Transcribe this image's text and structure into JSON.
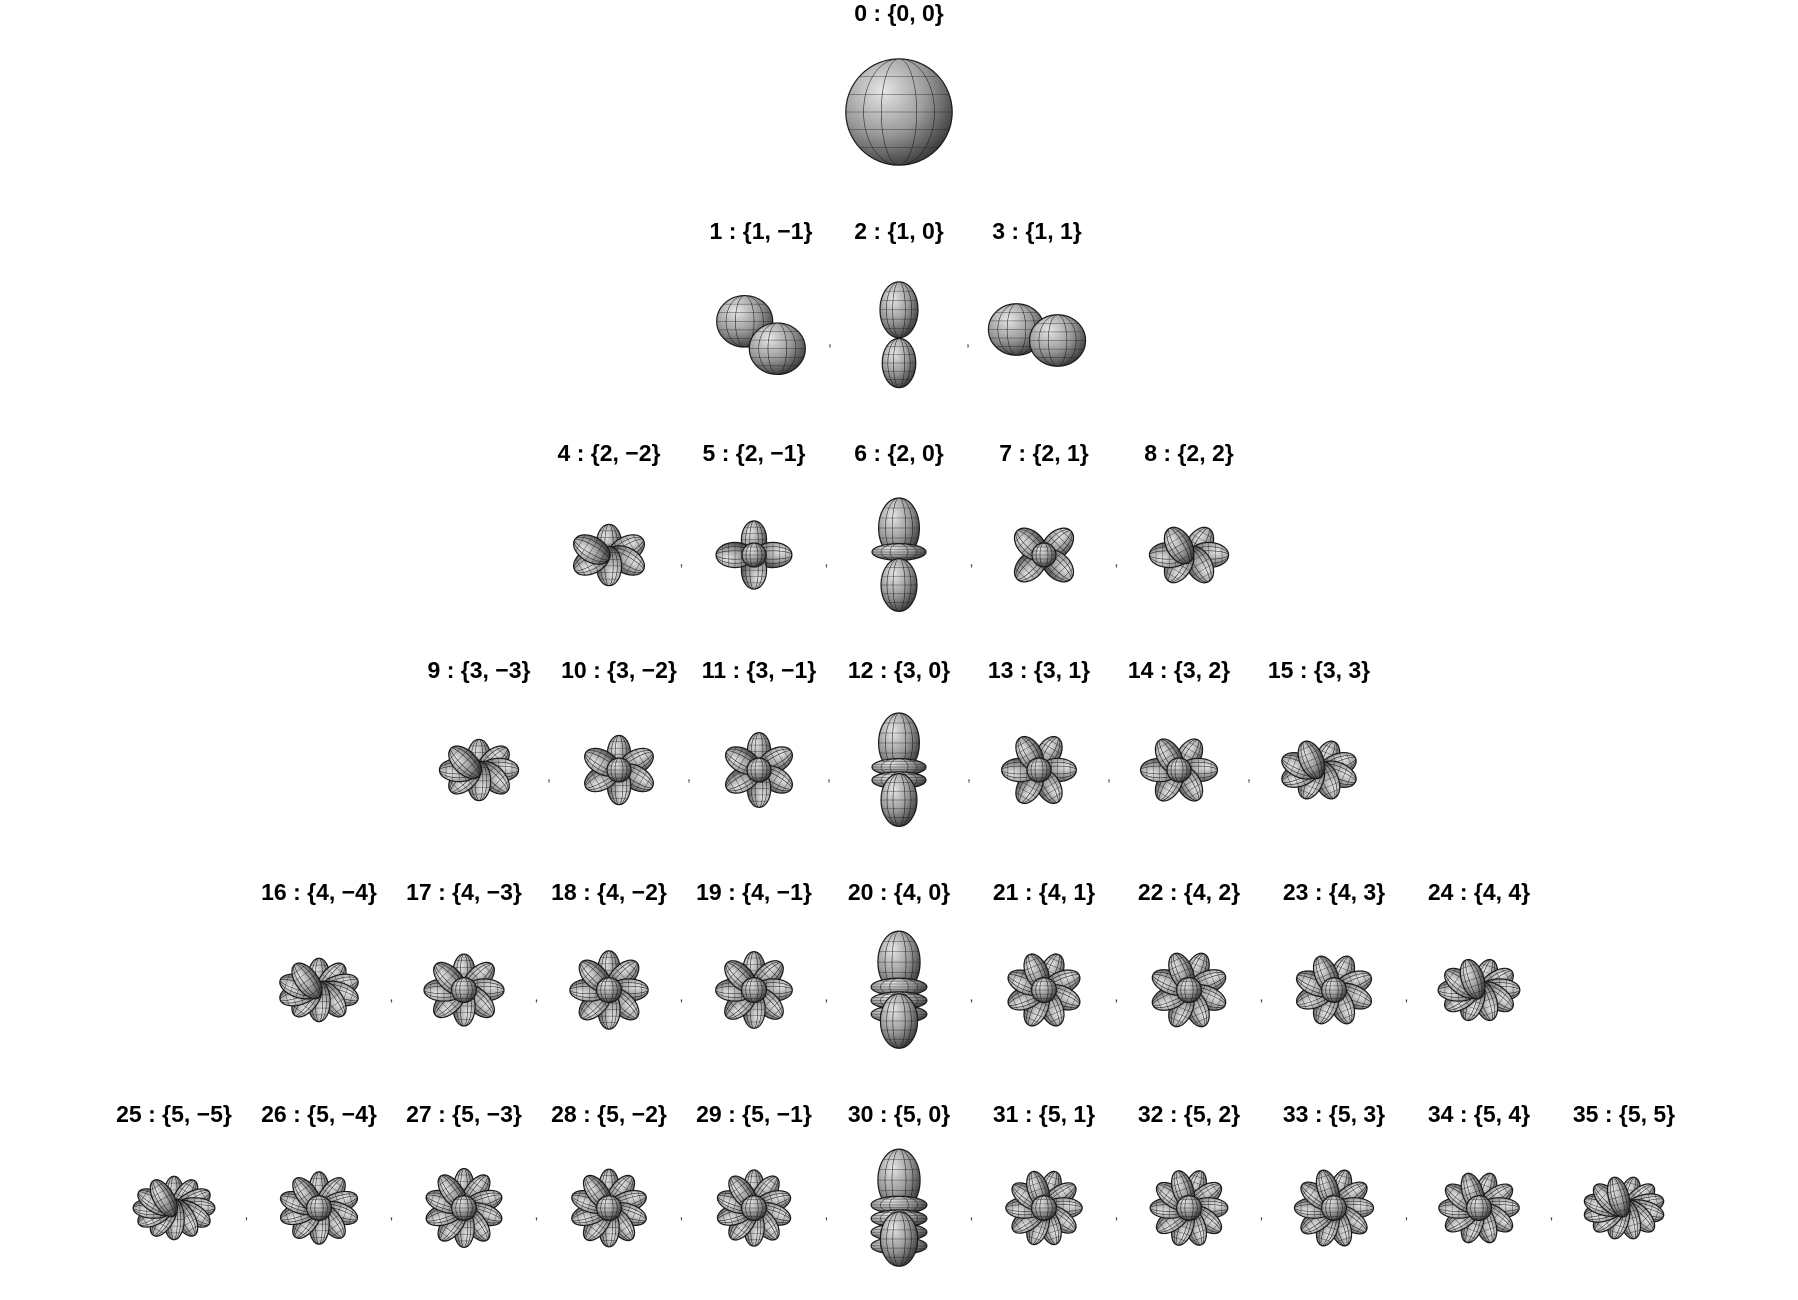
{
  "rows": [
    {
      "l": 0,
      "items": [
        {
          "label": "0 : {0, 0}",
          "m": 0
        }
      ]
    },
    {
      "l": 1,
      "items": [
        {
          "label": "1 : {1, −1}",
          "m": -1
        },
        {
          "label": "2 : {1, 0}",
          "m": 0
        },
        {
          "label": "3 : {1, 1}",
          "m": 1
        }
      ]
    },
    {
      "l": 2,
      "items": [
        {
          "label": "4 : {2, −2}",
          "m": -2
        },
        {
          "label": "5 : {2, −1}",
          "m": -1
        },
        {
          "label": "6 : {2, 0}",
          "m": 0
        },
        {
          "label": "7 : {2, 1}",
          "m": 1
        },
        {
          "label": "8 : {2, 2}",
          "m": 2
        }
      ]
    },
    {
      "l": 3,
      "items": [
        {
          "label": "9 : {3, −3}",
          "m": -3
        },
        {
          "label": "10 : {3, −2}",
          "m": -2
        },
        {
          "label": "11 : {3, −1}",
          "m": -1
        },
        {
          "label": "12 : {3, 0}",
          "m": 0
        },
        {
          "label": "13 : {3, 1}",
          "m": 1
        },
        {
          "label": "14 : {3, 2}",
          "m": 2
        },
        {
          "label": "15 : {3, 3}",
          "m": 3
        }
      ]
    },
    {
      "l": 4,
      "items": [
        {
          "label": "16 : {4, −4}",
          "m": -4
        },
        {
          "label": "17 : {4, −3}",
          "m": -3
        },
        {
          "label": "18 : {4, −2}",
          "m": -2
        },
        {
          "label": "19 : {4, −1}",
          "m": -1
        },
        {
          "label": "20 : {4, 0}",
          "m": 0
        },
        {
          "label": "21 : {4, 1}",
          "m": 1
        },
        {
          "label": "22 : {4, 2}",
          "m": 2
        },
        {
          "label": "23 : {4, 3}",
          "m": 3
        },
        {
          "label": "24 : {4, 4}",
          "m": 4
        }
      ]
    },
    {
      "l": 5,
      "items": [
        {
          "label": "25 : {5, −5}",
          "m": -5
        },
        {
          "label": "26 : {5, −4}",
          "m": -4
        },
        {
          "label": "27 : {5, −3}",
          "m": -3
        },
        {
          "label": "28 : {5, −2}",
          "m": -2
        },
        {
          "label": "29 : {5, −1}",
          "m": -1
        },
        {
          "label": "30 : {5, 0}",
          "m": 0
        },
        {
          "label": "31 : {5, 1}",
          "m": 1
        },
        {
          "label": "32 : {5, 2}",
          "m": 2
        },
        {
          "label": "33 : {5, 3}",
          "m": 3
        },
        {
          "label": "34 : {5, 4}",
          "m": 4
        },
        {
          "label": "35 : {5, 5}",
          "m": 5
        }
      ]
    }
  ],
  "separator": ",",
  "colors": {
    "surface": "#9a9a9a",
    "highlight": "#e6e6e6",
    "shadow": "#3a3a3a",
    "mesh": "#1a1a1a",
    "text": "#000000"
  }
}
